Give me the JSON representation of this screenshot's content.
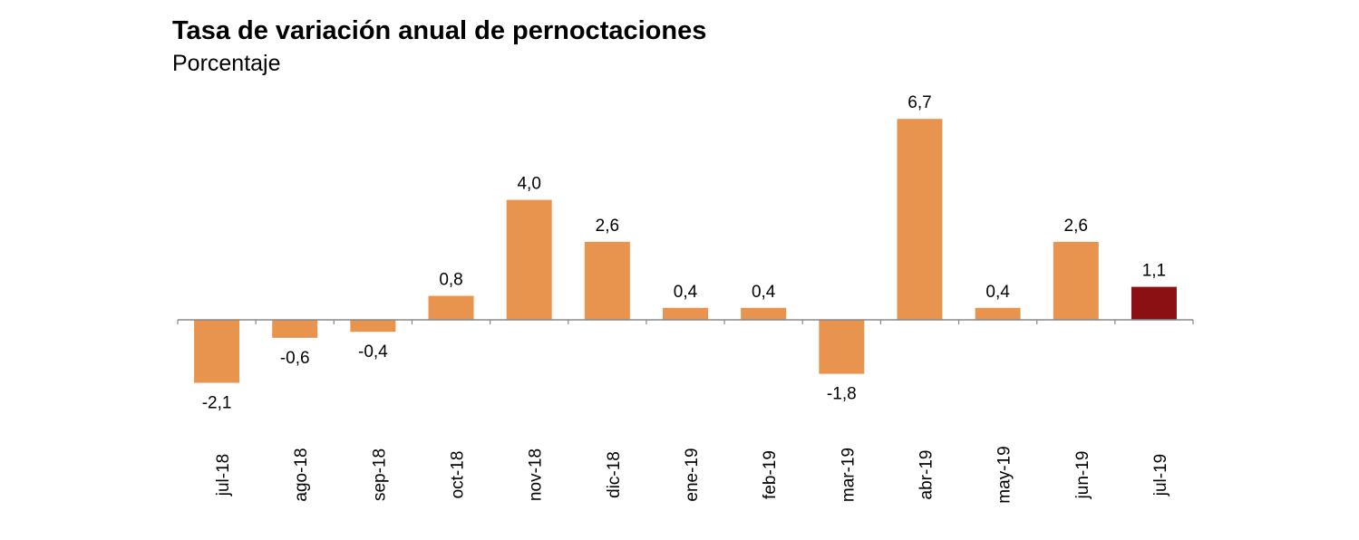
{
  "chart_data": {
    "type": "bar",
    "title": "Tasa de variación anual de pernoctaciones",
    "subtitle": "Porcentaje",
    "xlabel": "",
    "ylabel": "",
    "categories": [
      "jul-18",
      "ago-18",
      "sep-18",
      "oct-18",
      "nov-18",
      "dic-18",
      "ene-19",
      "feb-19",
      "mar-19",
      "abr-19",
      "may-19",
      "jun-19",
      "jul-19"
    ],
    "values": [
      -2.1,
      -0.6,
      -0.4,
      0.8,
      4.0,
      2.6,
      0.4,
      0.4,
      -1.8,
      6.7,
      0.4,
      2.6,
      1.1
    ],
    "value_labels": [
      "-2,1",
      "-0,6",
      "-0,4",
      "0,8",
      "4,0",
      "2,6",
      "0,4",
      "0,4",
      "-1,8",
      "6,7",
      "0,4",
      "2,6",
      "1,1"
    ],
    "ylim": [
      -2.1,
      6.7
    ],
    "grid": false,
    "legend": "none",
    "colors": {
      "bar": "#E8944F",
      "highlight": "#8B1014",
      "axis": "#888888",
      "text": "#000000"
    },
    "highlight_index": 12
  }
}
